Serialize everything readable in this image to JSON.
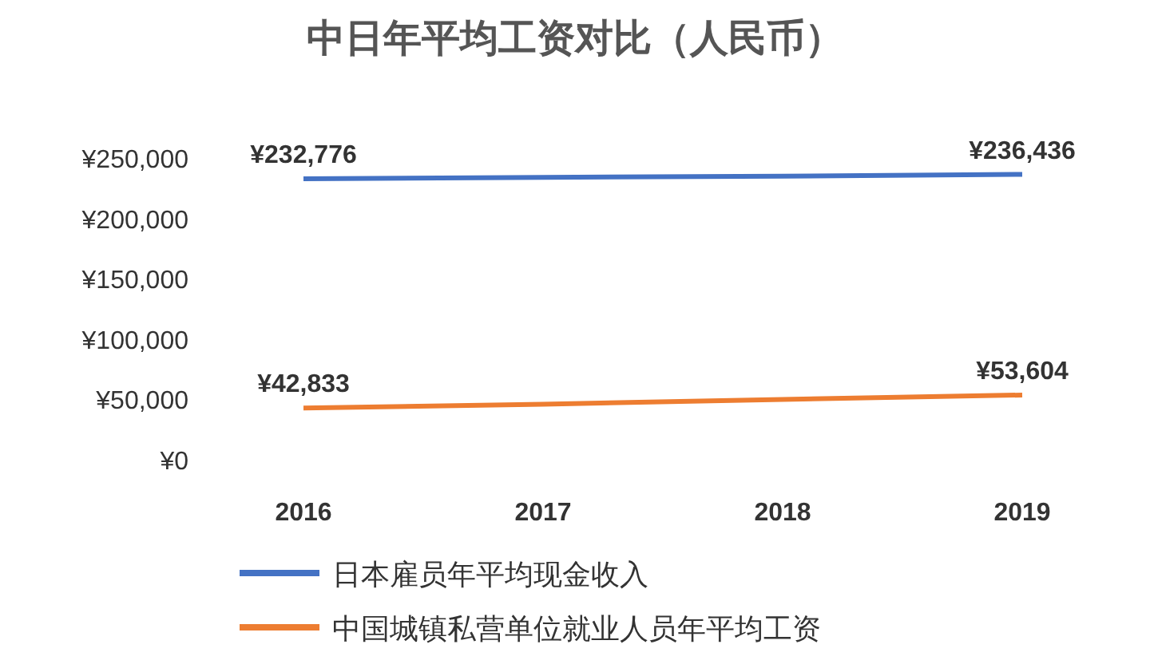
{
  "chart_data": {
    "type": "line",
    "title": "中日年平均工资对比（人民币）",
    "categories": [
      "2016",
      "2017",
      "2018",
      "2019"
    ],
    "series": [
      {
        "name": "日本雇员年平均现金收入",
        "color": "#4472c4",
        "values": [
          232776,
          234000,
          235000,
          236436
        ],
        "value_labels": [
          "¥232,776",
          null,
          null,
          "¥236,436"
        ]
      },
      {
        "name": "中国城镇私营单位就业人员年平均工资",
        "color": "#ed7d31",
        "values": [
          42833,
          46000,
          50000,
          53604
        ],
        "value_labels": [
          "¥42,833",
          null,
          null,
          "¥53,604"
        ]
      }
    ],
    "ylim": [
      0,
      250000
    ],
    "yticks": [
      {
        "value": 0,
        "label": "¥0"
      },
      {
        "value": 50000,
        "label": "¥50,000"
      },
      {
        "value": 100000,
        "label": "¥100,000"
      },
      {
        "value": 150000,
        "label": "¥150,000"
      },
      {
        "value": 200000,
        "label": "¥200,000"
      },
      {
        "value": 250000,
        "label": "¥250,000"
      }
    ],
    "legend": "bottom",
    "marker": "none",
    "line_style": "solid"
  }
}
